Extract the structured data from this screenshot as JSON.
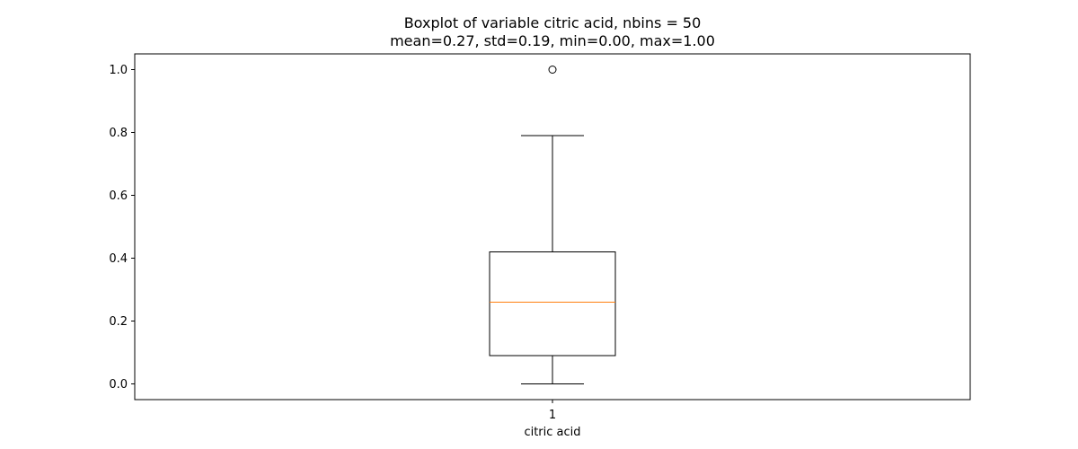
{
  "chart_data": {
    "type": "box",
    "title_line1": "Boxplot of variable citric acid, nbins = 50",
    "title_line2": "mean=0.27, std=0.19, min=0.00, max=1.00",
    "xlabel": "citric acid",
    "ylabel": "",
    "xtick_labels": [
      "1"
    ],
    "yticks": [
      0.0,
      0.2,
      0.4,
      0.6,
      0.8,
      1.0
    ],
    "ytick_labels": [
      "0.0",
      "0.2",
      "0.4",
      "0.6",
      "0.8",
      "1.0"
    ],
    "ylim": [
      -0.05,
      1.05
    ],
    "grid": false,
    "series": [
      {
        "whisker_low": 0.0,
        "q1": 0.09,
        "median": 0.26,
        "q3": 0.42,
        "whisker_high": 0.79,
        "outliers": [
          1.0
        ]
      }
    ],
    "colors": {
      "box": "#000000",
      "median": "#ff7f0e",
      "outlier": "#000000",
      "axes": "#000000"
    }
  }
}
